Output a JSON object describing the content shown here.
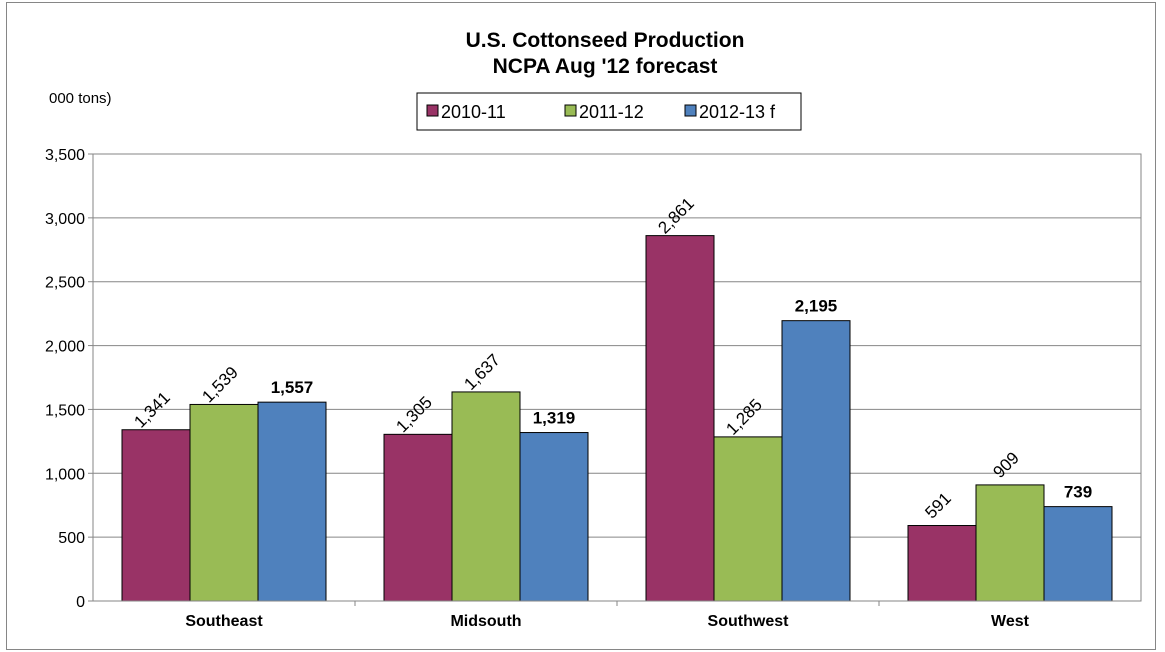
{
  "chart_data": {
    "type": "bar",
    "title_line1": "U.S. Cottonseed Production",
    "title_line2": "NCPA Aug '12 forecast",
    "unit_label": "000 tons)",
    "categories": [
      "Southeast",
      "Midsouth",
      "Southwest",
      "West"
    ],
    "series": [
      {
        "name": "2010-11",
        "color": "#993366",
        "values": [
          1341,
          1305,
          2861,
          591
        ],
        "labels": [
          "1,341",
          "1,305",
          "2,861",
          "591"
        ],
        "label_style": "rotated"
      },
      {
        "name": "2011-12",
        "color": "#99BB55",
        "values": [
          1539,
          1637,
          1285,
          909
        ],
        "labels": [
          "1,539",
          "1,637",
          "1,285",
          "909"
        ],
        "label_style": "rotated"
      },
      {
        "name": "2012-13 f",
        "color": "#4F81BD",
        "values": [
          1557,
          1319,
          2195,
          739
        ],
        "labels": [
          "1,557",
          "1,319",
          "2,195",
          "739"
        ],
        "label_style": "bold"
      }
    ],
    "ylim": [
      0,
      3500
    ],
    "yticks": [
      "0",
      "500",
      "1,000",
      "1,500",
      "2,000",
      "2,500",
      "3,000",
      "3,500"
    ],
    "ytick_values": [
      0,
      500,
      1000,
      1500,
      2000,
      2500,
      3000,
      3500
    ],
    "grid": true,
    "legend_position": "top-center"
  }
}
